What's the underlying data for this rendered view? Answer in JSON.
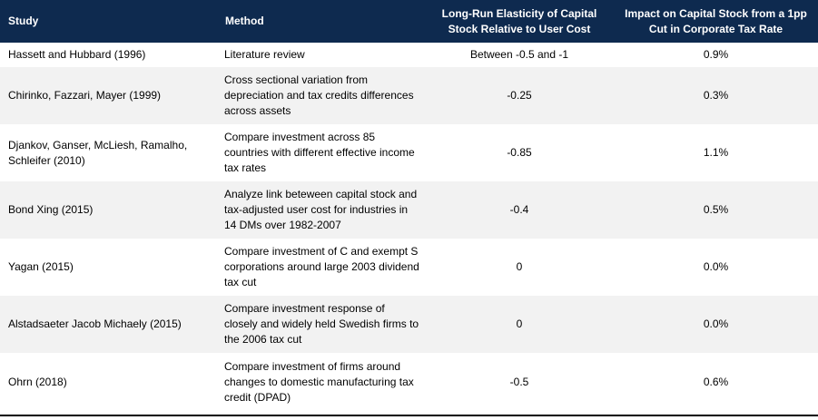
{
  "table": {
    "headers": {
      "study": "Study",
      "method": "Method",
      "elasticity": "Long-Run Elasticity of Capital Stock Relative to User Cost",
      "impact": "Impact on Capital Stock from a 1pp Cut in Corporate Tax Rate"
    },
    "rows": [
      {
        "study": "Hassett and Hubbard (1996)",
        "method": "Literature review",
        "elasticity": "Between -0.5 and -1",
        "impact": "0.9%"
      },
      {
        "study": "Chirinko, Fazzari, Mayer (1999)",
        "method": "Cross sectional variation from depreciation and tax credits differences across assets",
        "elasticity": "-0.25",
        "impact": "0.3%"
      },
      {
        "study": "Djankov, Ganser, McLiesh, Ramalho, Schleifer (2010)",
        "method": "Compare investment across 85 countries with different effective income tax rates",
        "elasticity": "-0.85",
        "impact": "1.1%"
      },
      {
        "study": "Bond Xing (2015)",
        "method": "Analyze link beteween capital stock and tax-adjusted user cost for industries in 14 DMs over 1982-2007",
        "elasticity": "-0.4",
        "impact": "0.5%"
      },
      {
        "study": "Yagan (2015)",
        "method": "Compare investment of C and exempt S corporations around large 2003 dividend tax cut",
        "elasticity": "0",
        "impact": "0.0%"
      },
      {
        "study": "Alstadsaeter Jacob Michaely (2015)",
        "method": "Compare investment response of closely and widely held Swedish firms to the 2006 tax cut",
        "elasticity": "0",
        "impact": "0.0%"
      },
      {
        "study": "Ohrn (2018)",
        "method": "Compare investment of firms around changes to domestic manufacturing tax credit (DPAD)",
        "elasticity": "-0.5",
        "impact": "0.6%"
      }
    ]
  }
}
